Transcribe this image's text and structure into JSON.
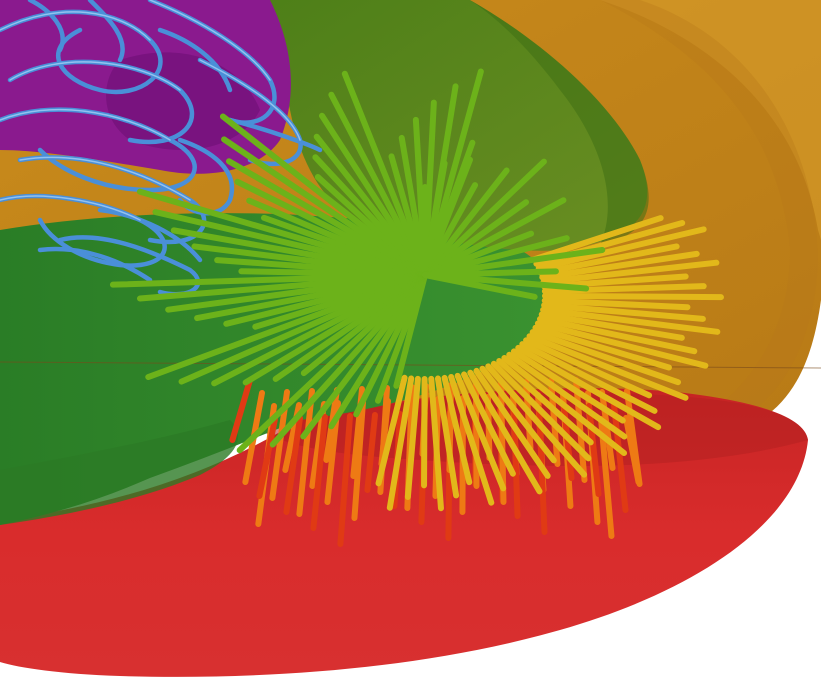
{
  "scene": {
    "colors": {
      "background": "#ffffff",
      "red_shell": "#d42a2a",
      "orange_shell": "#cc8c1e",
      "green_shell": "#2f8a2a",
      "olive_shell": "#5f8a1c",
      "purple_core": "#8a1a8e",
      "blue_ribbons": "#4a8fd8",
      "needle_green": "#6cb21a",
      "needle_yellow": "#e2b81a",
      "needle_orange": "#ee7a14",
      "needle_red": "#e03a14"
    }
  }
}
